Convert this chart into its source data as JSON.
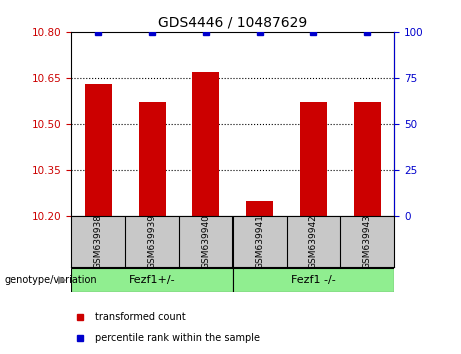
{
  "title": "GDS4446 / 10487629",
  "samples": [
    "GSM639938",
    "GSM639939",
    "GSM639940",
    "GSM639941",
    "GSM639942",
    "GSM639943"
  ],
  "bar_values": [
    10.63,
    10.57,
    10.67,
    10.25,
    10.57,
    10.57
  ],
  "bar_bottom": 10.2,
  "percentile_values": [
    100,
    100,
    100,
    100,
    100,
    100
  ],
  "ylim_left": [
    10.2,
    10.8
  ],
  "ylim_right": [
    0,
    100
  ],
  "yticks_left": [
    10.2,
    10.35,
    10.5,
    10.65,
    10.8
  ],
  "yticks_right": [
    0,
    25,
    50,
    75,
    100
  ],
  "bar_color": "#CC0000",
  "percentile_color": "#0000CC",
  "groups": [
    {
      "label": "Fezf1+/-",
      "start": 0,
      "end": 2,
      "color": "#90EE90"
    },
    {
      "label": "Fezf1 -/-",
      "start": 3,
      "end": 5,
      "color": "#90EE90"
    }
  ],
  "legend_entries": [
    {
      "label": "transformed count",
      "color": "#CC0000"
    },
    {
      "label": "percentile rank within the sample",
      "color": "#0000CC"
    }
  ],
  "bg_color": "#FFFFFF",
  "tick_label_color_left": "#CC0000",
  "tick_label_color_right": "#0000CC",
  "sample_bg_color": "#C8C8C8"
}
